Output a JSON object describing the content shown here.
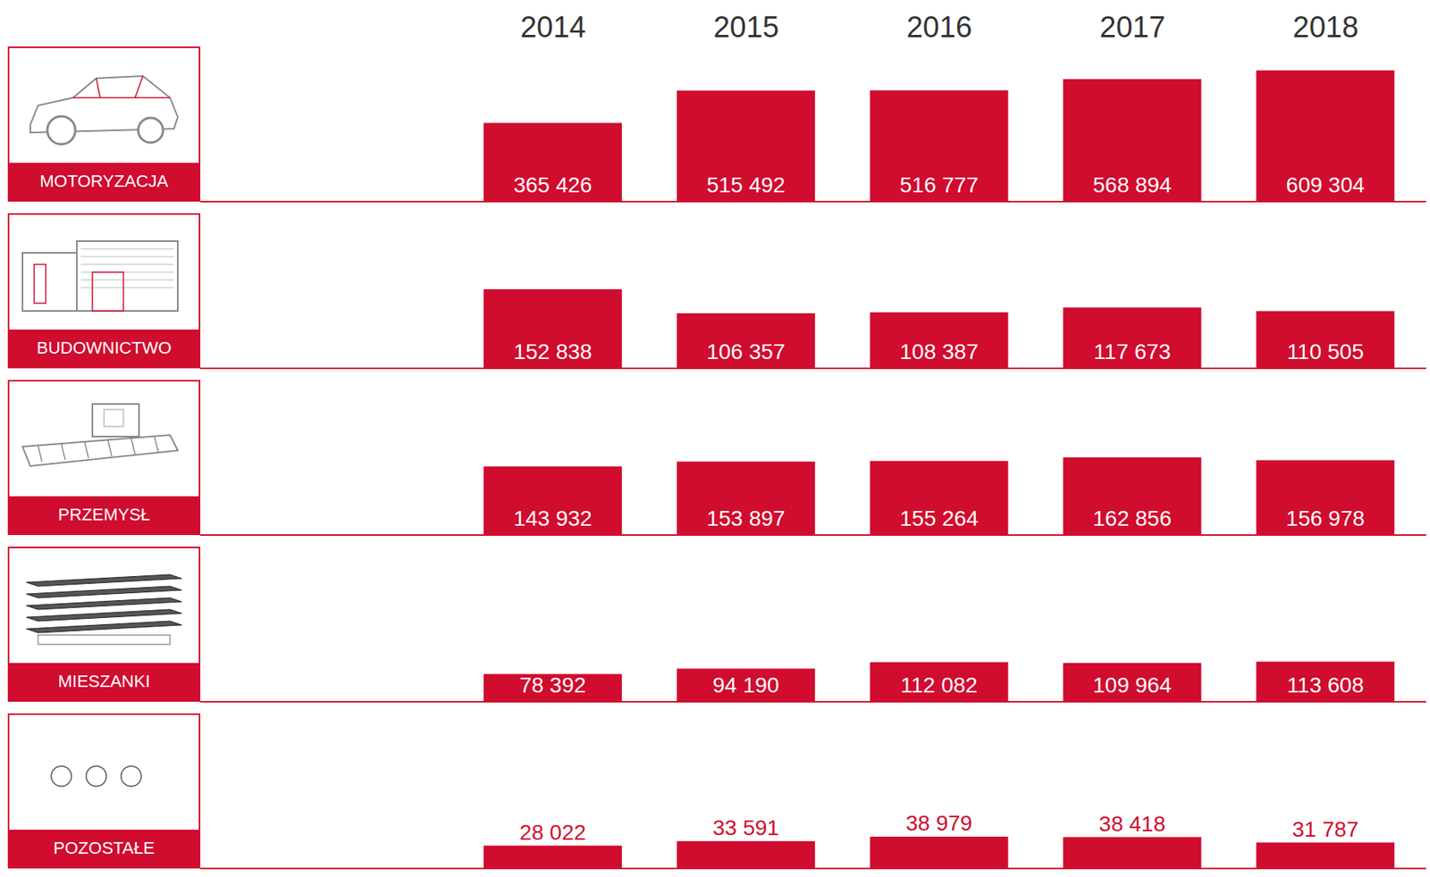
{
  "chart_data": [
    {
      "type": "bar",
      "title": "MOTORYZACJA",
      "categories": [
        "2014",
        "2015",
        "2016",
        "2017",
        "2018"
      ],
      "values": [
        365426,
        515492,
        516777,
        568894,
        609304
      ],
      "value_labels": [
        "365 426",
        "515 492",
        "516 777",
        "568 894",
        "609 304"
      ],
      "color": "#d00c2f",
      "ylim": [
        0,
        720000
      ],
      "data_labels": true,
      "tick_labels": "x"
    },
    {
      "type": "bar",
      "title": "BUDOWNICTWO",
      "categories": [
        "2014",
        "2015",
        "2016",
        "2017",
        "2018"
      ],
      "values": [
        152838,
        106357,
        108387,
        117673,
        110505
      ],
      "value_labels": [
        "152 838",
        "106 357",
        "108 387",
        "117 673",
        "110 505"
      ],
      "color": "#d00c2f",
      "ylim": [
        0,
        300000
      ],
      "data_labels": true,
      "tick_labels": false
    },
    {
      "type": "bar",
      "title": "PRZEMYSŁ",
      "categories": [
        "2014",
        "2015",
        "2016",
        "2017",
        "2018"
      ],
      "values": [
        143932,
        153897,
        155264,
        162856,
        156978
      ],
      "value_labels": [
        "143 932",
        "153 897",
        "155 264",
        "162 856",
        "156 978"
      ],
      "color": "#d00c2f",
      "ylim": [
        0,
        325000
      ],
      "data_labels": true,
      "tick_labels": false
    },
    {
      "type": "bar",
      "title": "MIESZANKI",
      "categories": [
        "2014",
        "2015",
        "2016",
        "2017",
        "2018"
      ],
      "values": [
        78392,
        94190,
        112082,
        109964,
        113608
      ],
      "value_labels": [
        "78 392",
        "94 190",
        "112 082",
        "109 964",
        "113 608"
      ],
      "color": "#d00c2f",
      "ylim": [
        0,
        440000
      ],
      "data_labels": true,
      "tick_labels": false
    },
    {
      "type": "bar",
      "title": "POZOSTAŁE",
      "categories": [
        "2014",
        "2015",
        "2016",
        "2017",
        "2018"
      ],
      "values": [
        28022,
        33591,
        38979,
        38418,
        31787
      ],
      "value_labels": [
        "28 022",
        "33 591",
        "38 979",
        "38 418",
        "31 787"
      ],
      "color": "#d00c2f",
      "ylim": [
        0,
        190000
      ],
      "data_labels": true,
      "tick_labels": false
    }
  ]
}
